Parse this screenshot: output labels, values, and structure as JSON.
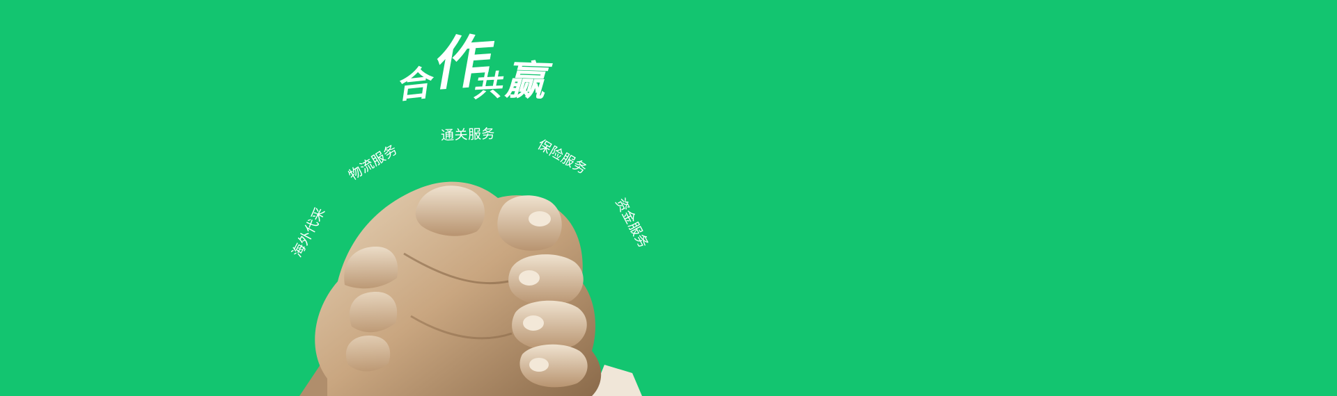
{
  "banner": {
    "background_color": "#13c570",
    "slogan": {
      "text": "合作共赢",
      "characters": [
        "合",
        "作",
        "共",
        "赢"
      ]
    },
    "services": [
      {
        "label": "海外代采"
      },
      {
        "label": "物流服务"
      },
      {
        "label": "通关服务"
      },
      {
        "label": "保险服务"
      },
      {
        "label": "资金服务"
      }
    ],
    "image": {
      "subject": "clasped-hands-icon",
      "skin_color": "#c9a680",
      "shadow_color": "#8a6a4a"
    }
  }
}
